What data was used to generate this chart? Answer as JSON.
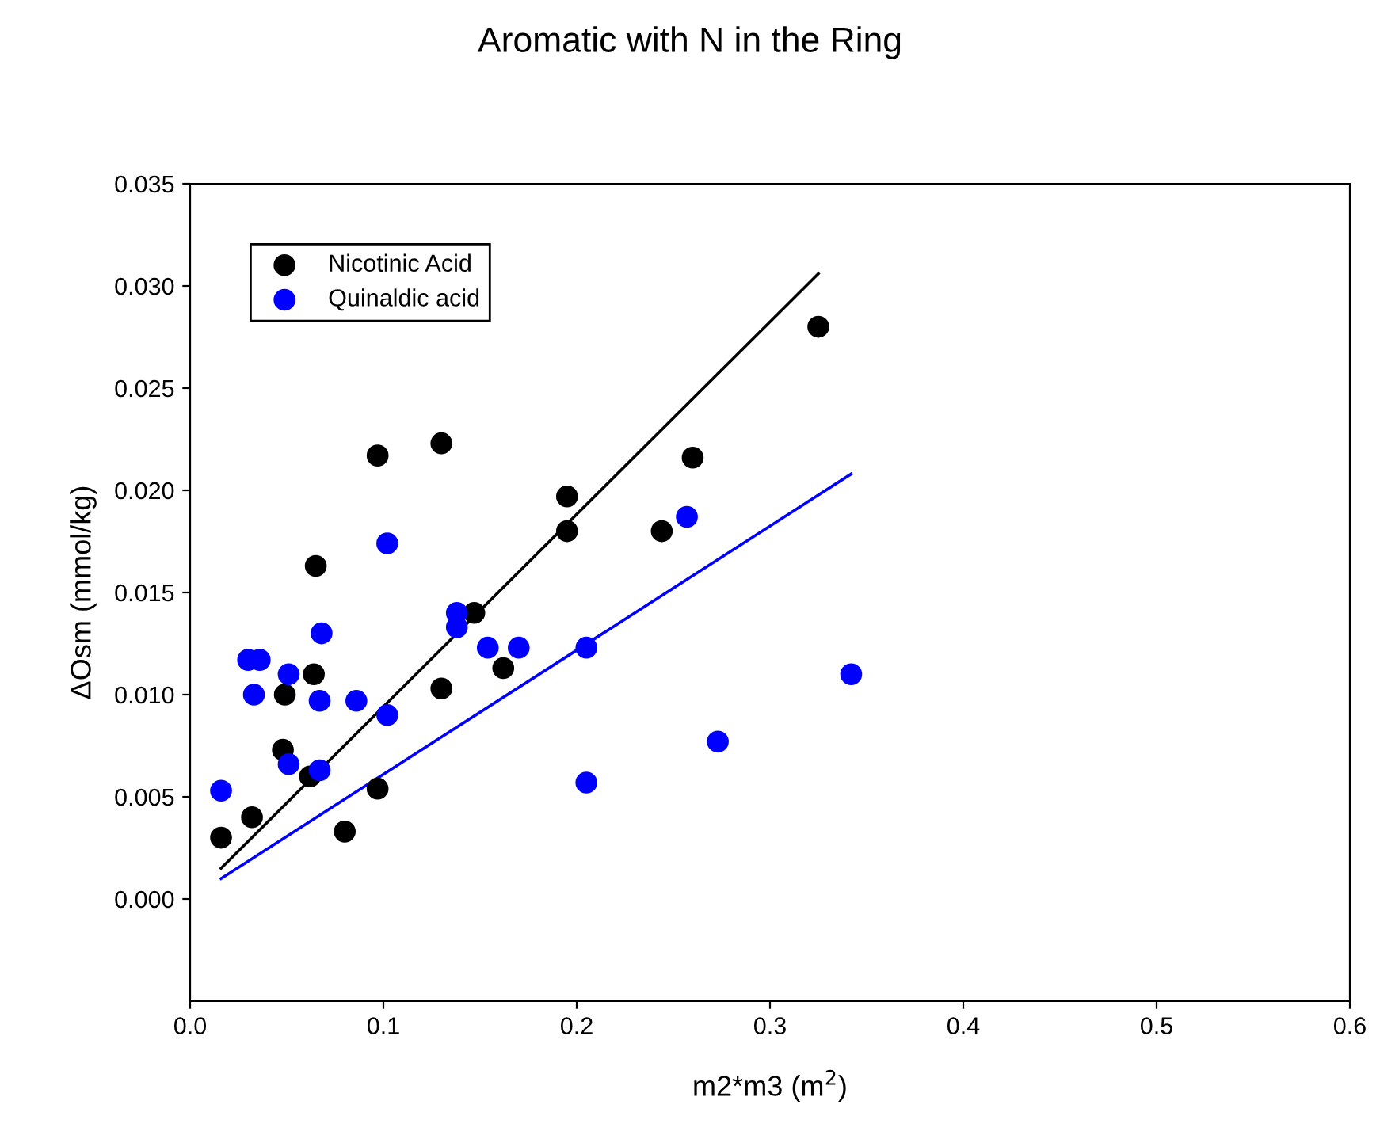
{
  "chart_data": {
    "type": "scatter",
    "title": "Aromatic with N in the Ring",
    "xlabel": "m2*m3 (m$^{2}$)",
    "ylabel": "ΔOsm (mmol/kg)",
    "xlim": [
      0,
      0.6
    ],
    "ylim": [
      -0.005,
      0.035
    ],
    "xticks": [
      {
        "value": 0,
        "label": "0.0"
      },
      {
        "value": 0.1,
        "label": "0.1"
      },
      {
        "value": 0.2,
        "label": "0.2"
      },
      {
        "value": 0.3,
        "label": "0.3"
      },
      {
        "value": 0.4,
        "label": "0.4"
      },
      {
        "value": 0.5,
        "label": "0.5"
      },
      {
        "value": 0.6,
        "label": "0.6"
      }
    ],
    "yticks": [
      {
        "value": 0,
        "label": "0.000"
      },
      {
        "value": 0.005,
        "label": "0.005"
      },
      {
        "value": 0.01,
        "label": "0.010"
      },
      {
        "value": 0.015,
        "label": "0.015"
      },
      {
        "value": 0.02,
        "label": "0.020"
      },
      {
        "value": 0.025,
        "label": "0.025"
      },
      {
        "value": 0.03,
        "label": "0.030"
      },
      {
        "value": 0.035,
        "label": "0.035"
      }
    ],
    "grid": false,
    "legend": "top left",
    "marker": "circle",
    "series": [
      {
        "name": "Nicotinic Acid",
        "color": "#000000",
        "x": [
          0.016,
          0.032,
          0.048,
          0.049,
          0.062,
          0.064,
          0.065,
          0.08,
          0.097,
          0.097,
          0.13,
          0.13,
          0.147,
          0.162,
          0.195,
          0.195,
          0.244,
          0.26,
          0.325
        ],
        "values": [
          0.003,
          0.004,
          0.0073,
          0.01,
          0.006,
          0.011,
          0.0163,
          0.0033,
          0.0054,
          0.0217,
          0.0103,
          0.0223,
          0.014,
          0.0113,
          0.018,
          0.0197,
          0.018,
          0.0216,
          0.028
        ]
      },
      {
        "name": "Quinaldic acid",
        "color": "#0000ff",
        "x": [
          0.016,
          0.03,
          0.036,
          0.033,
          0.051,
          0.051,
          0.067,
          0.067,
          0.068,
          0.086,
          0.102,
          0.102,
          0.138,
          0.138,
          0.154,
          0.17,
          0.205,
          0.205,
          0.257,
          0.273,
          0.342
        ],
        "values": [
          0.0053,
          0.0117,
          0.0117,
          0.01,
          0.0066,
          0.011,
          0.0063,
          0.0097,
          0.013,
          0.0097,
          0.009,
          0.0174,
          0.0133,
          0.014,
          0.0123,
          0.0123,
          0.0123,
          0.0057,
          0.0187,
          0.0077,
          0.011
        ]
      },
      {
        "type": "line",
        "color": "#000000",
        "marker": "none",
        "x": [
          0.016,
          0.325
        ],
        "values": [
          0.0015,
          0.0306
        ]
      },
      {
        "type": "line",
        "color": "#0000ff",
        "marker": "none",
        "x": [
          0.016,
          0.342
        ],
        "values": [
          0.001,
          0.0208
        ]
      }
    ]
  }
}
